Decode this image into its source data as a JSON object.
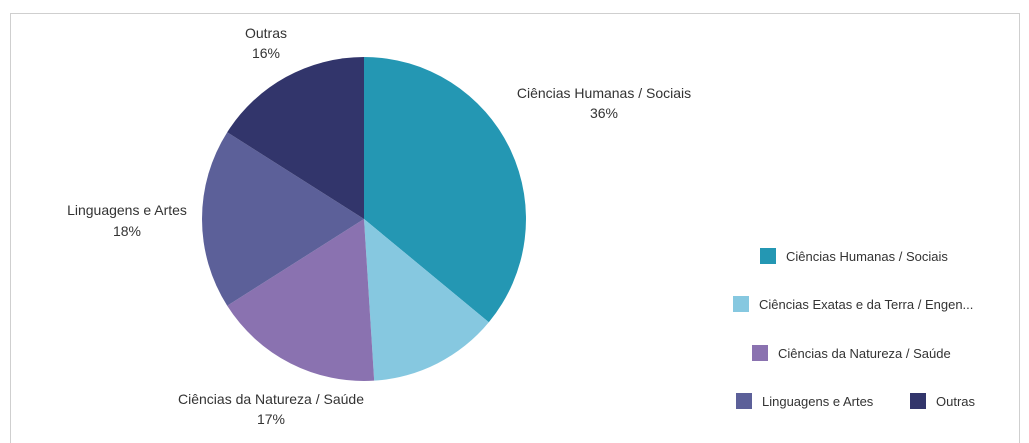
{
  "chart_data": {
    "type": "pie",
    "categories": [
      "Ciências Humanas / Sociais",
      "Ciências Exatas e da Terra / Engen...",
      "Ciências da Natureza / Saúde",
      "Linguagens e Artes",
      "Outras"
    ],
    "values": [
      36,
      13,
      17,
      18,
      16
    ],
    "colors": [
      "#2497b3",
      "#86c8e0",
      "#8a72b0",
      "#5c6099",
      "#32356b"
    ],
    "slice_labels": [
      {
        "name": "Ciências Humanas / Sociais",
        "pct": "36%"
      },
      null,
      {
        "name": "Ciências da Natureza / Saúde",
        "pct": "17%"
      },
      {
        "name": "Linguagens e Artes",
        "pct": "18%"
      },
      {
        "name": "Outras",
        "pct": "16%"
      }
    ],
    "legend": {
      "placement": "right",
      "entries": [
        "Ciências Humanas / Sociais",
        "Ciências Exatas e da Terra / Engen...",
        "Ciências da Natureza / Saúde",
        "Linguagens e Artes",
        "Outras"
      ]
    }
  }
}
